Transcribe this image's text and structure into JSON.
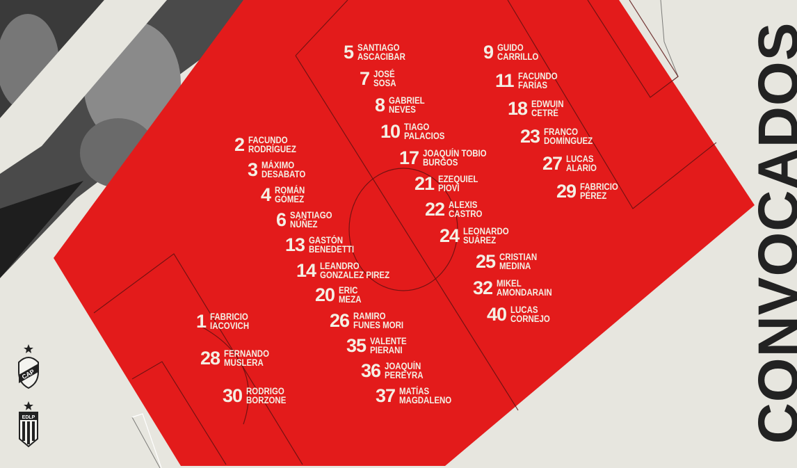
{
  "title": "CONVOCADOS",
  "colors": {
    "field": "#e31b1b",
    "background": "#e7e6df",
    "text": "#f4efe4",
    "title": "#222222"
  },
  "crests": [
    {
      "icon": "cap-crest-icon",
      "text": "CAP"
    },
    {
      "icon": "edlp-crest-icon",
      "text": "EDLP"
    }
  ],
  "players": [
    {
      "number": "1",
      "first": "FABRICIO",
      "last": "IACOVICH"
    },
    {
      "number": "28",
      "first": "FERNANDO",
      "last": "MUSLERA"
    },
    {
      "number": "30",
      "first": "RODRIGO",
      "last": "BORZONE"
    },
    {
      "number": "2",
      "first": "FACUNDO",
      "last": "RODRÍGUEZ"
    },
    {
      "number": "3",
      "first": "MÁXIMO",
      "last": "DESABATO"
    },
    {
      "number": "4",
      "first": "ROMÁN",
      "last": "GÓMEZ"
    },
    {
      "number": "6",
      "first": "SANTIAGO",
      "last": "NÚÑEZ"
    },
    {
      "number": "13",
      "first": "GASTÓN",
      "last": "BENEDETTI"
    },
    {
      "number": "14",
      "first": "LEANDRO",
      "last": "GONZALEZ PIREZ"
    },
    {
      "number": "20",
      "first": "ERIC",
      "last": "MEZA"
    },
    {
      "number": "26",
      "first": "RAMIRO",
      "last": "FUNES MORI"
    },
    {
      "number": "35",
      "first": "VALENTE",
      "last": "PIERANI"
    },
    {
      "number": "36",
      "first": "JOAQUÍN",
      "last": "PEREYRA"
    },
    {
      "number": "37",
      "first": "MATÍAS",
      "last": "MAGDALENO"
    },
    {
      "number": "5",
      "first": "SANTIAGO",
      "last": "ASCACIBAR"
    },
    {
      "number": "7",
      "first": "JOSÉ",
      "last": "SOSA"
    },
    {
      "number": "8",
      "first": "GABRIEL",
      "last": "NEVES"
    },
    {
      "number": "10",
      "first": "TIAGO",
      "last": "PALACIOS"
    },
    {
      "number": "17",
      "first": "JOAQUÍN TOBIO",
      "last": "BURGOS"
    },
    {
      "number": "21",
      "first": "EZEQUIEL",
      "last": "PIOVI"
    },
    {
      "number": "22",
      "first": "ALEXIS",
      "last": "CASTRO"
    },
    {
      "number": "24",
      "first": "LEONARDO",
      "last": "SUÁREZ"
    },
    {
      "number": "25",
      "first": "CRISTIAN",
      "last": "MEDINA"
    },
    {
      "number": "32",
      "first": "MIKEL",
      "last": "AMONDARAIN"
    },
    {
      "number": "40",
      "first": "LUCAS",
      "last": "CORNEJO"
    },
    {
      "number": "9",
      "first": "GUIDO",
      "last": "CARRILLO"
    },
    {
      "number": "11",
      "first": "FACUNDO",
      "last": "FARÍAS"
    },
    {
      "number": "18",
      "first": "EDWUIN",
      "last": "CETRÉ"
    },
    {
      "number": "23",
      "first": "FRANCO",
      "last": "DOMÍNGUEZ"
    },
    {
      "number": "27",
      "first": "LUCAS",
      "last": "ALARIO"
    },
    {
      "number": "29",
      "first": "FABRICIO",
      "last": "PÉREZ"
    }
  ]
}
